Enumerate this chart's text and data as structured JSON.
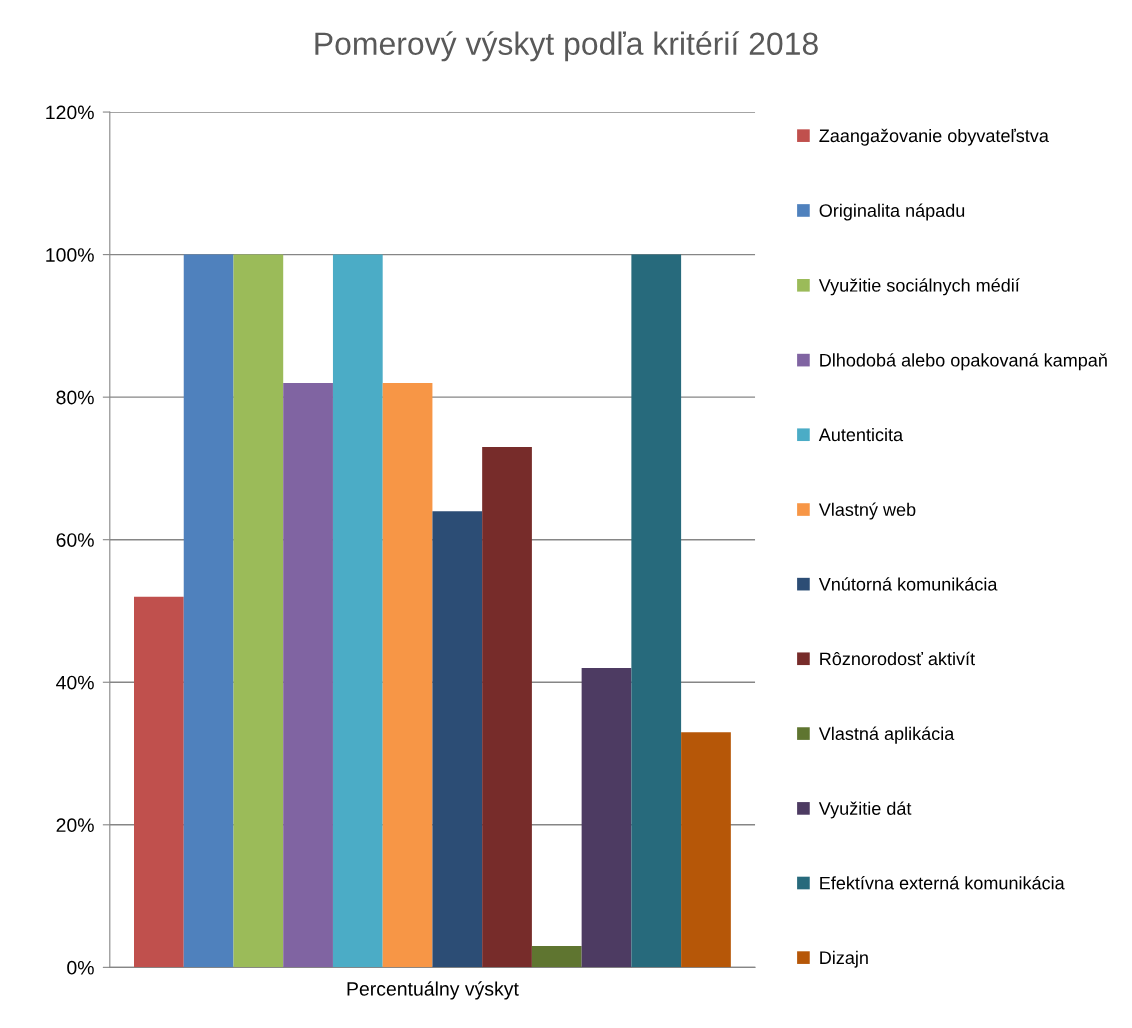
{
  "chart_data": {
    "type": "bar",
    "title": "Pomerový výskyt podľa kritérií 2018",
    "categories": [
      "Percentuálny výskyt"
    ],
    "series": [
      {
        "name": "Zaangažovanie obyvateľstva",
        "color": "#c0504d",
        "values": [
          52
        ]
      },
      {
        "name": "Originalita nápadu",
        "color": "#4f81bd",
        "values": [
          100
        ]
      },
      {
        "name": "Využitie sociálnych médií",
        "color": "#9bbb59",
        "values": [
          100
        ]
      },
      {
        "name": "Dlhodobá alebo opakovaná kampaň",
        "color": "#8064a2",
        "values": [
          82
        ]
      },
      {
        "name": "Autenticita",
        "color": "#4bacc6",
        "values": [
          100
        ]
      },
      {
        "name": "Vlastný web",
        "color": "#f79646",
        "values": [
          82
        ]
      },
      {
        "name": "Vnútorná komunikácia",
        "color": "#2c4d75",
        "values": [
          64
        ]
      },
      {
        "name": "Rôznorodosť aktivít",
        "color": "#772c2a",
        "values": [
          73
        ]
      },
      {
        "name": "Vlastná aplikácia",
        "color": "#5f7530",
        "values": [
          3
        ]
      },
      {
        "name": "Využitie dát",
        "color": "#4d3b62",
        "values": [
          42
        ]
      },
      {
        "name": "Efektívna externá komunikácia",
        "color": "#276a7c",
        "values": [
          100
        ]
      },
      {
        "name": "Dizajn",
        "color": "#b65708",
        "values": [
          33
        ]
      }
    ],
    "ylim": [
      0,
      120
    ],
    "yticks": [
      {
        "value": 0,
        "label": "0%"
      },
      {
        "value": 20,
        "label": "20%"
      },
      {
        "value": 40,
        "label": "40%"
      },
      {
        "value": 60,
        "label": "60%"
      },
      {
        "value": 80,
        "label": "80%"
      },
      {
        "value": 100,
        "label": "100%"
      },
      {
        "value": 120,
        "label": "120%"
      }
    ],
    "grid": "y",
    "legend": "right"
  }
}
